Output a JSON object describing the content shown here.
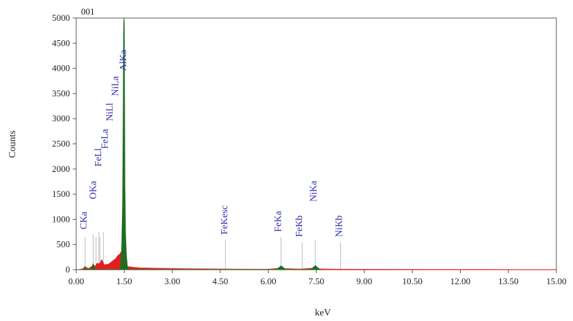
{
  "chart_data": {
    "type": "line",
    "sample_label": "001",
    "xlabel": "keV",
    "ylabel": "Counts",
    "xlim": [
      0,
      15
    ],
    "ylim": [
      0,
      5000
    ],
    "x_ticks": [
      0,
      1.5,
      3,
      4.5,
      6,
      7.5,
      9,
      10.5,
      12,
      13.5,
      15
    ],
    "x_tick_labels": [
      "0.00",
      "1.50",
      "3.00",
      "4.50",
      "6.00",
      "7.50",
      "9.00",
      "10.50",
      "12.00",
      "13.50",
      "15.00"
    ],
    "y_ticks": [
      0,
      500,
      1000,
      1500,
      2000,
      2500,
      3000,
      3500,
      4000,
      4500,
      5000
    ],
    "y_tick_labels": [
      "0",
      "500",
      "1000",
      "1500",
      "2000",
      "2500",
      "3000",
      "3500",
      "4000",
      "4500",
      "5000"
    ],
    "grid": false,
    "colors": {
      "spectrum": "#e02020",
      "fitted_peaks": "#1f6e1f",
      "peak_labels": "#2a2aa8",
      "peak_markers": "#bbbbbb"
    },
    "peak_markers": [
      {
        "label": "CKa",
        "x": 0.28,
        "marker_height": 650
      },
      {
        "label": "OKa",
        "x": 0.53,
        "marker_height": 700
      },
      {
        "label": "FeLl",
        "x": 0.62,
        "marker_height": 650
      },
      {
        "label": "FeLa",
        "x": 0.71,
        "marker_height": 750
      },
      {
        "label": "NiLl",
        "x": 0.74,
        "marker_height": 650
      },
      {
        "label": "NiLa",
        "x": 0.85,
        "marker_height": 750
      },
      {
        "label": "AlKa",
        "x": 1.49,
        "marker_height": 0
      },
      {
        "label": "FeKesc",
        "x": 4.66,
        "marker_height": 600
      },
      {
        "label": "FeKa",
        "x": 6.4,
        "marker_height": 650
      },
      {
        "label": "FeKb",
        "x": 7.06,
        "marker_height": 550
      },
      {
        "label": "NiKa",
        "x": 7.47,
        "marker_height": 600
      },
      {
        "label": "NiKb",
        "x": 8.26,
        "marker_height": 550
      }
    ],
    "peak_labels": [
      {
        "text": "CKa",
        "x": 0.33,
        "y": 800
      },
      {
        "text": "OKa",
        "x": 0.62,
        "y": 1400
      },
      {
        "text": "FeLl",
        "x": 0.78,
        "y": 2050
      },
      {
        "text": "FeLa",
        "x": 0.98,
        "y": 2400
      },
      {
        "text": "NiLl",
        "x": 1.14,
        "y": 2950
      },
      {
        "text": "NiLa",
        "x": 1.31,
        "y": 3450
      },
      {
        "text": "AlKa",
        "x": 1.56,
        "y": 3950
      },
      {
        "text": "FeKesc",
        "x": 4.72,
        "y": 700
      },
      {
        "text": "FeKa",
        "x": 6.4,
        "y": 750
      },
      {
        "text": "FeKb",
        "x": 7.06,
        "y": 650
      },
      {
        "text": "NiKa",
        "x": 7.5,
        "y": 1350
      },
      {
        "text": "NiKb",
        "x": 8.3,
        "y": 650
      }
    ],
    "series": [
      {
        "color": "#e02020",
        "x": [
          0.1,
          0.2,
          0.25,
          0.28,
          0.32,
          0.4,
          0.5,
          0.53,
          0.57,
          0.62,
          0.66,
          0.7,
          0.73,
          0.77,
          0.8,
          0.85,
          0.9,
          0.95,
          1.0,
          1.05,
          1.1,
          1.15,
          1.2,
          1.25,
          1.3,
          1.35,
          1.4,
          1.45,
          1.5,
          1.55,
          1.6,
          1.8,
          2.0,
          2.5,
          3.0,
          3.5,
          4.0,
          4.5,
          5.0,
          5.5,
          6.0,
          6.3,
          6.4,
          6.5,
          7.0,
          7.4,
          7.47,
          7.55,
          8.0,
          9.0,
          10.0,
          11.0,
          12.0,
          13.0,
          14.0,
          15.0
        ],
        "y": [
          5,
          15,
          40,
          60,
          35,
          25,
          70,
          110,
          60,
          90,
          130,
          110,
          120,
          160,
          200,
          120,
          90,
          110,
          100,
          130,
          150,
          180,
          200,
          230,
          280,
          300,
          350,
          200,
          150,
          80,
          60,
          45,
          35,
          28,
          22,
          18,
          16,
          12,
          10,
          9,
          8,
          25,
          55,
          20,
          10,
          30,
          60,
          15,
          8,
          6,
          5,
          4,
          3,
          3,
          2,
          2
        ]
      },
      {
        "color": "#1f6e1f",
        "x": [
          0.22,
          0.28,
          0.34,
          0.47,
          0.53,
          0.59,
          1.38,
          1.42,
          1.45,
          1.47,
          1.48,
          1.49,
          1.5,
          1.51,
          1.52,
          1.54,
          1.57,
          1.61,
          6.25,
          6.4,
          6.55,
          7.32,
          7.47,
          7.62
        ],
        "y": [
          0,
          65,
          0,
          0,
          120,
          0,
          0,
          400,
          1300,
          3200,
          4700,
          5000,
          4900,
          3500,
          1700,
          700,
          250,
          0,
          0,
          75,
          0,
          0,
          80,
          0
        ]
      }
    ]
  }
}
